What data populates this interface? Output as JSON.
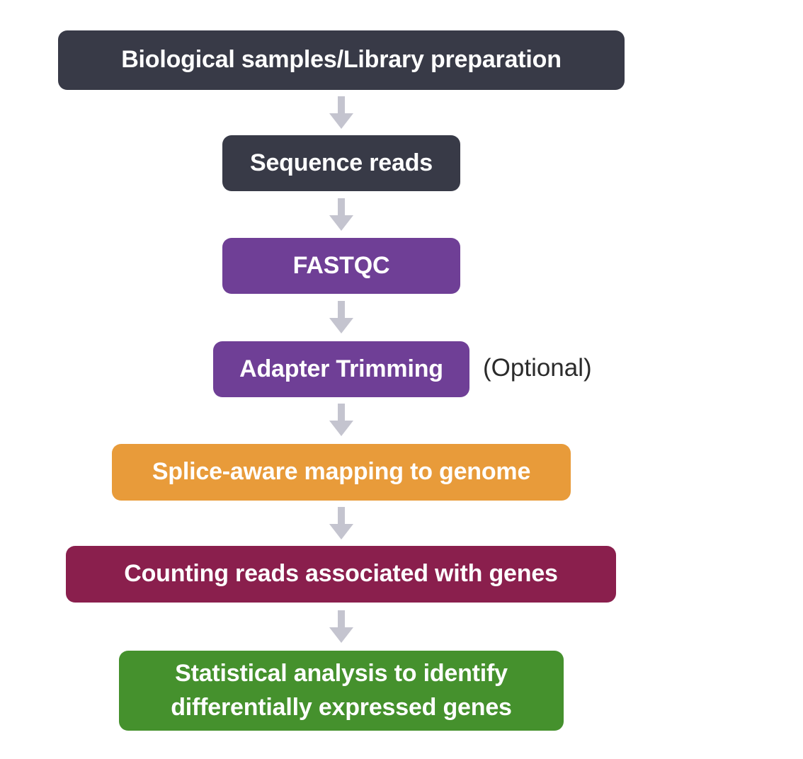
{
  "diagram": {
    "steps": [
      {
        "label": "Biological samples/Library preparation",
        "color": "#383a47"
      },
      {
        "label": "Sequence reads",
        "color": "#383a47"
      },
      {
        "label": "FASTQC",
        "color": "#6f3f96"
      },
      {
        "label": "Adapter Trimming",
        "color": "#6f3f96",
        "note": "(Optional)"
      },
      {
        "label": "Splice-aware mapping to genome",
        "color": "#e89b3a"
      },
      {
        "label": "Counting reads associated with genes",
        "color": "#8a1f4d"
      },
      {
        "label_line1": "Statistical analysis to identify",
        "label_line2": "differentially expressed genes",
        "color": "#45912d"
      }
    ],
    "arrow_color": "#c4c4cf"
  }
}
